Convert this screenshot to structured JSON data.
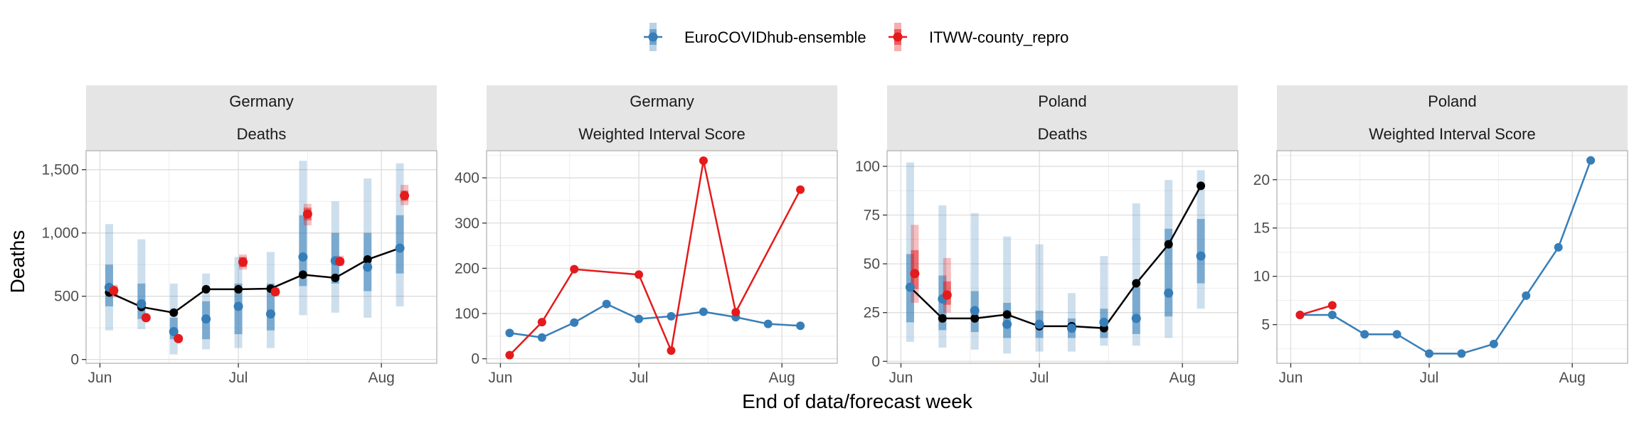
{
  "colors": {
    "ensemble": "#377EB8",
    "itww": "#E41A1C",
    "observed": "#000000",
    "strip_bg": "#E5E5E5",
    "grid_major": "#DDDDDD",
    "grid_minor": "#EEEEEE",
    "panel_border": "#B3B3B3"
  },
  "legend": {
    "items": [
      {
        "key": "ensemble",
        "label": "EuroCOVIDhub-ensemble"
      },
      {
        "key": "itww",
        "label": "ITWW-county_repro"
      }
    ]
  },
  "axes": {
    "ylabel": "Deaths",
    "xlabel": "End of data/forecast week"
  },
  "chart_data": [
    {
      "type": "line",
      "region": "Germany",
      "measure": "Deaths",
      "x_range": [
        "2021-05-29",
        "2021-08-13"
      ],
      "ylim": [
        -30,
        1650
      ],
      "x_ticks": [
        {
          "date": "2021-06-01",
          "label": "Jun"
        },
        {
          "date": "2021-07-01",
          "label": "Jul"
        },
        {
          "date": "2021-08-01",
          "label": "Aug"
        }
      ],
      "y_ticks": [
        {
          "value": 0,
          "label": "0"
        },
        {
          "value": 500,
          "label": "500"
        },
        {
          "value": 1000,
          "label": "1,000"
        },
        {
          "value": 1500,
          "label": "1,500"
        }
      ],
      "y_minor": [
        250,
        750,
        1250
      ],
      "observed": [
        {
          "date": "2021-06-03",
          "value": 530
        },
        {
          "date": "2021-06-10",
          "value": 415
        },
        {
          "date": "2021-06-17",
          "value": 370
        },
        {
          "date": "2021-06-24",
          "value": 555
        },
        {
          "date": "2021-07-01",
          "value": 555
        },
        {
          "date": "2021-07-08",
          "value": 560
        },
        {
          "date": "2021-07-15",
          "value": 670
        },
        {
          "date": "2021-07-22",
          "value": 645
        },
        {
          "date": "2021-07-29",
          "value": 790
        },
        {
          "date": "2021-08-05",
          "value": 880
        }
      ],
      "forecasts": [
        {
          "model": "ensemble",
          "points": [
            {
              "date": "2021-06-03",
              "median": 570,
              "q25": 420,
              "q75": 750,
              "q05": 230,
              "q95": 1070
            },
            {
              "date": "2021-06-10",
              "median": 440,
              "q25": 320,
              "q75": 600,
              "q05": 240,
              "q95": 950
            },
            {
              "date": "2021-06-17",
              "median": 220,
              "q25": 160,
              "q75": 330,
              "q05": 40,
              "q95": 600
            },
            {
              "date": "2021-06-24",
              "median": 320,
              "q25": 160,
              "q75": 460,
              "q05": 80,
              "q95": 680
            },
            {
              "date": "2021-07-01",
              "median": 420,
              "q25": 200,
              "q75": 600,
              "q05": 90,
              "q95": 810
            },
            {
              "date": "2021-07-08",
              "median": 360,
              "q25": 230,
              "q75": 600,
              "q05": 90,
              "q95": 850
            },
            {
              "date": "2021-07-15",
              "median": 810,
              "q25": 580,
              "q75": 1140,
              "q05": 350,
              "q95": 1570
            },
            {
              "date": "2021-07-22",
              "median": 780,
              "q25": 600,
              "q75": 1000,
              "q05": 370,
              "q95": 1250
            },
            {
              "date": "2021-07-29",
              "median": 730,
              "q25": 540,
              "q75": 1000,
              "q05": 330,
              "q95": 1430
            },
            {
              "date": "2021-08-05",
              "median": 880,
              "q25": 680,
              "q75": 1140,
              "q05": 420,
              "q95": 1550
            }
          ]
        },
        {
          "model": "itww",
          "points": [
            {
              "date": "2021-06-04",
              "median": 545,
              "q25": 510,
              "q75": 575,
              "q05": 490,
              "q95": 590
            },
            {
              "date": "2021-06-11",
              "median": 330,
              "q25": 315,
              "q75": 345,
              "q05": 305,
              "q95": 355
            },
            {
              "date": "2021-06-18",
              "median": 165,
              "q25": 150,
              "q75": 180,
              "q05": 140,
              "q95": 190
            },
            {
              "date": "2021-07-02",
              "median": 770,
              "q25": 730,
              "q75": 810,
              "q05": 710,
              "q95": 830
            },
            {
              "date": "2021-07-09",
              "median": 535,
              "q25": 515,
              "q75": 560,
              "q05": 500,
              "q95": 570
            },
            {
              "date": "2021-07-16",
              "median": 1150,
              "q25": 1100,
              "q75": 1200,
              "q05": 1060,
              "q95": 1230
            },
            {
              "date": "2021-07-23",
              "median": 775,
              "q25": 755,
              "q75": 800,
              "q05": 740,
              "q95": 820
            },
            {
              "date": "2021-08-06",
              "median": 1295,
              "q25": 1255,
              "q75": 1335,
              "q05": 1220,
              "q95": 1380
            }
          ]
        }
      ]
    },
    {
      "type": "line",
      "region": "Germany",
      "measure": "Weighted Interval Score",
      "x_range": [
        "2021-05-29",
        "2021-08-13"
      ],
      "ylim": [
        -10,
        460
      ],
      "x_ticks": [
        {
          "date": "2021-06-01",
          "label": "Jun"
        },
        {
          "date": "2021-07-01",
          "label": "Jul"
        },
        {
          "date": "2021-08-01",
          "label": "Aug"
        }
      ],
      "y_ticks": [
        {
          "value": 0,
          "label": "0"
        },
        {
          "value": 100,
          "label": "100"
        },
        {
          "value": 200,
          "label": "200"
        },
        {
          "value": 300,
          "label": "300"
        },
        {
          "value": 400,
          "label": "400"
        }
      ],
      "y_minor": [
        50,
        150,
        250,
        350,
        450
      ],
      "series": [
        {
          "model": "ensemble",
          "points": [
            {
              "date": "2021-06-03",
              "value": 57
            },
            {
              "date": "2021-06-10",
              "value": 47
            },
            {
              "date": "2021-06-17",
              "value": 80
            },
            {
              "date": "2021-06-24",
              "value": 121
            },
            {
              "date": "2021-07-01",
              "value": 88
            },
            {
              "date": "2021-07-08",
              "value": 94
            },
            {
              "date": "2021-07-15",
              "value": 104
            },
            {
              "date": "2021-07-22",
              "value": 92
            },
            {
              "date": "2021-07-29",
              "value": 77
            },
            {
              "date": "2021-08-05",
              "value": 73
            }
          ]
        },
        {
          "model": "itww",
          "points": [
            {
              "date": "2021-06-03",
              "value": 8
            },
            {
              "date": "2021-06-10",
              "value": 81
            },
            {
              "date": "2021-06-17",
              "value": 198
            },
            {
              "date": "2021-07-01",
              "value": 186
            },
            {
              "date": "2021-07-08",
              "value": 18
            },
            {
              "date": "2021-07-15",
              "value": 438
            },
            {
              "date": "2021-07-22",
              "value": 103
            },
            {
              "date": "2021-08-05",
              "value": 374
            }
          ]
        }
      ]
    },
    {
      "type": "line",
      "region": "Poland",
      "measure": "Deaths",
      "x_range": [
        "2021-05-29",
        "2021-08-13"
      ],
      "ylim": [
        -1,
        108
      ],
      "x_ticks": [
        {
          "date": "2021-06-01",
          "label": "Jun"
        },
        {
          "date": "2021-07-01",
          "label": "Jul"
        },
        {
          "date": "2021-08-01",
          "label": "Aug"
        }
      ],
      "y_ticks": [
        {
          "value": 0,
          "label": "0"
        },
        {
          "value": 25,
          "label": "25"
        },
        {
          "value": 50,
          "label": "50"
        },
        {
          "value": 75,
          "label": "75"
        },
        {
          "value": 100,
          "label": "100"
        }
      ],
      "y_minor": [
        12.5,
        37.5,
        62.5,
        87.5
      ],
      "observed": [
        {
          "date": "2021-06-03",
          "value": 38
        },
        {
          "date": "2021-06-10",
          "value": 22
        },
        {
          "date": "2021-06-17",
          "value": 22
        },
        {
          "date": "2021-06-24",
          "value": 24
        },
        {
          "date": "2021-07-01",
          "value": 18
        },
        {
          "date": "2021-07-08",
          "value": 18
        },
        {
          "date": "2021-07-15",
          "value": 17
        },
        {
          "date": "2021-07-22",
          "value": 40
        },
        {
          "date": "2021-07-29",
          "value": 60
        },
        {
          "date": "2021-08-05",
          "value": 90
        }
      ],
      "forecasts": [
        {
          "model": "ensemble",
          "points": [
            {
              "date": "2021-06-03",
              "median": 38,
              "q25": 20,
              "q75": 55,
              "q05": 10,
              "q95": 102
            },
            {
              "date": "2021-06-10",
              "median": 32,
              "q25": 16,
              "q75": 44,
              "q05": 7,
              "q95": 80
            },
            {
              "date": "2021-06-17",
              "median": 26,
              "q25": 15,
              "q75": 36,
              "q05": 6,
              "q95": 76
            },
            {
              "date": "2021-06-24",
              "median": 19,
              "q25": 12,
              "q75": 30,
              "q05": 4,
              "q95": 64
            },
            {
              "date": "2021-07-01",
              "median": 19,
              "q25": 12,
              "q75": 26,
              "q05": 5,
              "q95": 60
            },
            {
              "date": "2021-07-08",
              "median": 17,
              "q25": 12,
              "q75": 22,
              "q05": 5,
              "q95": 35
            },
            {
              "date": "2021-07-15",
              "median": 20,
              "q25": 12,
              "q75": 27,
              "q05": 8,
              "q95": 54
            },
            {
              "date": "2021-07-22",
              "median": 22,
              "q25": 14,
              "q75": 38,
              "q05": 8,
              "q95": 81
            },
            {
              "date": "2021-07-29",
              "median": 35,
              "q25": 23,
              "q75": 68,
              "q05": 12,
              "q95": 93
            },
            {
              "date": "2021-08-05",
              "median": 54,
              "q25": 40,
              "q75": 73,
              "q05": 27,
              "q95": 98
            }
          ]
        },
        {
          "model": "itww",
          "points": [
            {
              "date": "2021-06-04",
              "median": 45,
              "q25": 37,
              "q75": 57,
              "q05": 30,
              "q95": 70
            },
            {
              "date": "2021-06-11",
              "median": 34,
              "q25": 29,
              "q75": 41,
              "q05": 25,
              "q95": 53
            }
          ]
        }
      ]
    },
    {
      "type": "line",
      "region": "Poland",
      "measure": "Weighted Interval Score",
      "x_range": [
        "2021-05-29",
        "2021-08-13"
      ],
      "ylim": [
        1,
        23
      ],
      "x_ticks": [
        {
          "date": "2021-06-01",
          "label": "Jun"
        },
        {
          "date": "2021-07-01",
          "label": "Jul"
        },
        {
          "date": "2021-08-01",
          "label": "Aug"
        }
      ],
      "y_ticks": [
        {
          "value": 5,
          "label": "5"
        },
        {
          "value": 10,
          "label": "10"
        },
        {
          "value": 15,
          "label": "15"
        },
        {
          "value": 20,
          "label": "20"
        }
      ],
      "y_minor": [
        2.5,
        7.5,
        12.5,
        17.5,
        22.5
      ],
      "series": [
        {
          "model": "ensemble",
          "points": [
            {
              "date": "2021-06-03",
              "value": 6
            },
            {
              "date": "2021-06-10",
              "value": 6
            },
            {
              "date": "2021-06-17",
              "value": 4
            },
            {
              "date": "2021-06-24",
              "value": 4
            },
            {
              "date": "2021-07-01",
              "value": 2
            },
            {
              "date": "2021-07-08",
              "value": 2
            },
            {
              "date": "2021-07-15",
              "value": 3
            },
            {
              "date": "2021-07-22",
              "value": 8
            },
            {
              "date": "2021-07-29",
              "value": 13
            },
            {
              "date": "2021-08-05",
              "value": 22
            }
          ]
        },
        {
          "model": "itww",
          "points": [
            {
              "date": "2021-06-03",
              "value": 6
            },
            {
              "date": "2021-06-10",
              "value": 7
            }
          ]
        }
      ]
    }
  ]
}
